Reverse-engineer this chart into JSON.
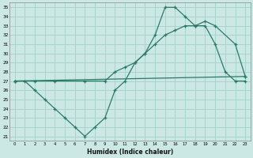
{
  "xlabel": "Humidex (Indice chaleur)",
  "bg_color": "#cce8e4",
  "grid_color": "#a8d4ce",
  "line_color": "#2a7a6a",
  "xlim": [
    -0.5,
    23.5
  ],
  "ylim": [
    20.5,
    35.5
  ],
  "xticks": [
    0,
    1,
    2,
    3,
    4,
    5,
    6,
    7,
    8,
    9,
    10,
    11,
    12,
    13,
    14,
    15,
    16,
    17,
    18,
    19,
    20,
    21,
    22,
    23
  ],
  "yticks": [
    21,
    22,
    23,
    24,
    25,
    26,
    27,
    28,
    29,
    30,
    31,
    32,
    33,
    34,
    35
  ],
  "line1_x": [
    0,
    1,
    2,
    3,
    4,
    5,
    6,
    7,
    8,
    9,
    10,
    11,
    12,
    13,
    14,
    15,
    16,
    17,
    18,
    19,
    20,
    21,
    22,
    23
  ],
  "line1_y": [
    27,
    27,
    26,
    25,
    24,
    23,
    22,
    21,
    22,
    23,
    26,
    27,
    29,
    30,
    32,
    35,
    35,
    34,
    33,
    33,
    31,
    28,
    27,
    27
  ],
  "line2_x": [
    0,
    2,
    4,
    7,
    9,
    10,
    11,
    12,
    13,
    14,
    15,
    16,
    17,
    18,
    19,
    20,
    22,
    23
  ],
  "line2_y": [
    27,
    27,
    27,
    27,
    27,
    28,
    28.5,
    29,
    30,
    31,
    32,
    32.5,
    33,
    33,
    33.5,
    33,
    31,
    27.5
  ],
  "line3_x": [
    0,
    23
  ],
  "line3_y": [
    27,
    27.5
  ]
}
